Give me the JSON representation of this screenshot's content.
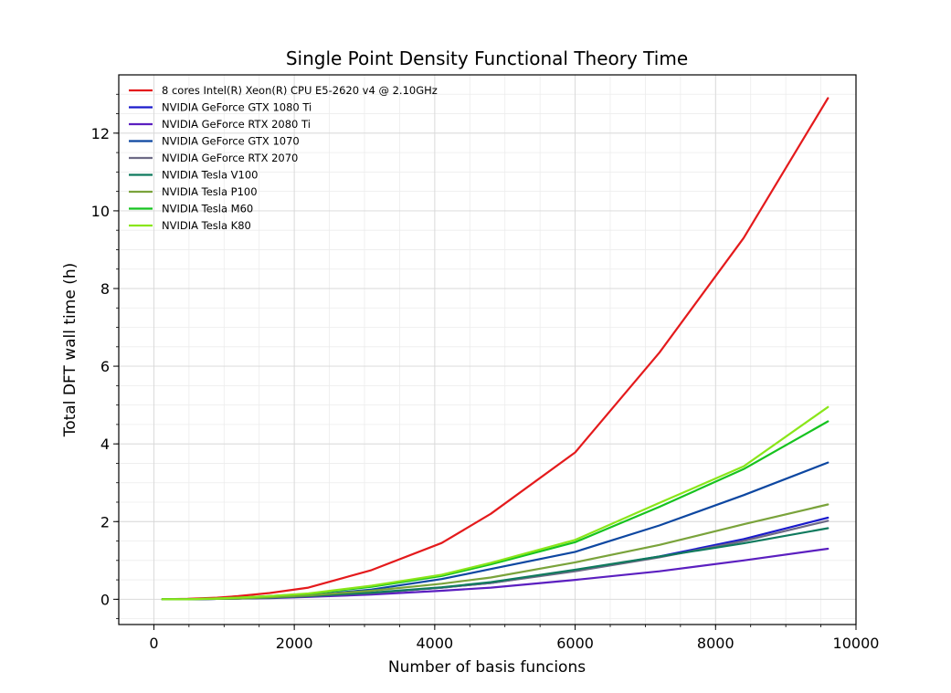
{
  "chart_data": {
    "type": "line",
    "title": "Single Point Density Functional Theory Time",
    "xlabel": "Number of basis funcions",
    "ylabel": "Total DFT wall time (h)",
    "xlim": [
      -500,
      10000
    ],
    "ylim": [
      -0.65,
      13.5
    ],
    "xticks": [
      0,
      2000,
      4000,
      6000,
      8000,
      10000
    ],
    "yticks": [
      0,
      2,
      4,
      6,
      8,
      10,
      12
    ],
    "grid": true,
    "legend_position": "upper-left",
    "series": [
      {
        "name": "8 cores Intel(R) Xeon(R) CPU E5-2620 v4 @ 2.10GHz",
        "color": "#e41a1c",
        "x": [
          120,
          480,
          900,
          1200,
          1650,
          2200,
          3100,
          4100,
          4800,
          6000,
          7200,
          8400,
          9600
        ],
        "y": [
          0.0,
          0.01,
          0.04,
          0.08,
          0.16,
          0.3,
          0.75,
          1.45,
          2.2,
          3.78,
          6.35,
          9.3,
          12.9
        ]
      },
      {
        "name": "NVIDIA GeForce GTX 1080 Ti",
        "color": "#1a1acc",
        "x": [
          120,
          480,
          900,
          1200,
          1650,
          2200,
          3100,
          4100,
          4800,
          6000,
          7200,
          8400,
          9600
        ],
        "y": [
          0.0,
          0.0,
          0.01,
          0.02,
          0.04,
          0.08,
          0.16,
          0.3,
          0.42,
          0.74,
          1.1,
          1.55,
          2.1
        ]
      },
      {
        "name": "NVIDIA GeForce RTX 2080 Ti",
        "color": "#5b1fc0",
        "x": [
          120,
          480,
          900,
          1200,
          1650,
          2200,
          3100,
          4100,
          4800,
          6000,
          7200,
          8400,
          9600
        ],
        "y": [
          0.0,
          0.0,
          0.01,
          0.02,
          0.03,
          0.06,
          0.12,
          0.22,
          0.3,
          0.5,
          0.72,
          1.0,
          1.3
        ]
      },
      {
        "name": "NVIDIA GeForce GTX 1070",
        "color": "#0d47a1",
        "x": [
          120,
          480,
          900,
          1200,
          1650,
          2200,
          3100,
          4100,
          4800,
          6000,
          7200,
          8400,
          9600
        ],
        "y": [
          0.0,
          0.0,
          0.01,
          0.02,
          0.05,
          0.1,
          0.25,
          0.52,
          0.78,
          1.22,
          1.9,
          2.68,
          3.52
        ]
      },
      {
        "name": "NVIDIA GeForce RTX 2070",
        "color": "#6d6a85",
        "x": [
          120,
          480,
          900,
          1200,
          1650,
          2200,
          3100,
          4100,
          4800,
          6000,
          7200,
          8400,
          9600
        ],
        "y": [
          0.0,
          0.0,
          0.01,
          0.02,
          0.04,
          0.08,
          0.16,
          0.3,
          0.42,
          0.72,
          1.08,
          1.5,
          2.02
        ]
      },
      {
        "name": "NVIDIA Tesla V100",
        "color": "#0f7a5e",
        "x": [
          120,
          480,
          900,
          1200,
          1650,
          2200,
          3100,
          4100,
          4800,
          6000,
          7200,
          8400,
          9600
        ],
        "y": [
          0.0,
          0.0,
          0.01,
          0.02,
          0.04,
          0.08,
          0.17,
          0.31,
          0.44,
          0.76,
          1.1,
          1.44,
          1.83
        ]
      },
      {
        "name": "NVIDIA Tesla P100",
        "color": "#7aa33b",
        "x": [
          120,
          480,
          900,
          1200,
          1650,
          2200,
          3100,
          4100,
          4800,
          6000,
          7200,
          8400,
          9600
        ],
        "y": [
          0.0,
          0.0,
          0.01,
          0.02,
          0.05,
          0.1,
          0.22,
          0.4,
          0.56,
          0.95,
          1.4,
          1.93,
          2.44
        ]
      },
      {
        "name": "NVIDIA Tesla M60",
        "color": "#16c31f",
        "x": [
          120,
          480,
          900,
          1200,
          1650,
          2200,
          3100,
          4100,
          4800,
          6000,
          7200,
          8400,
          9600
        ],
        "y": [
          0.0,
          0.0,
          0.02,
          0.04,
          0.08,
          0.14,
          0.32,
          0.6,
          0.9,
          1.47,
          2.38,
          3.35,
          4.58
        ]
      },
      {
        "name": "NVIDIA Tesla K80",
        "color": "#8ae61a",
        "x": [
          120,
          480,
          900,
          1200,
          1650,
          2200,
          3100,
          4100,
          4800,
          6000,
          7200,
          8400,
          9600
        ],
        "y": [
          0.0,
          0.0,
          0.02,
          0.04,
          0.08,
          0.15,
          0.35,
          0.63,
          0.94,
          1.53,
          2.48,
          3.42,
          4.95
        ]
      }
    ]
  }
}
